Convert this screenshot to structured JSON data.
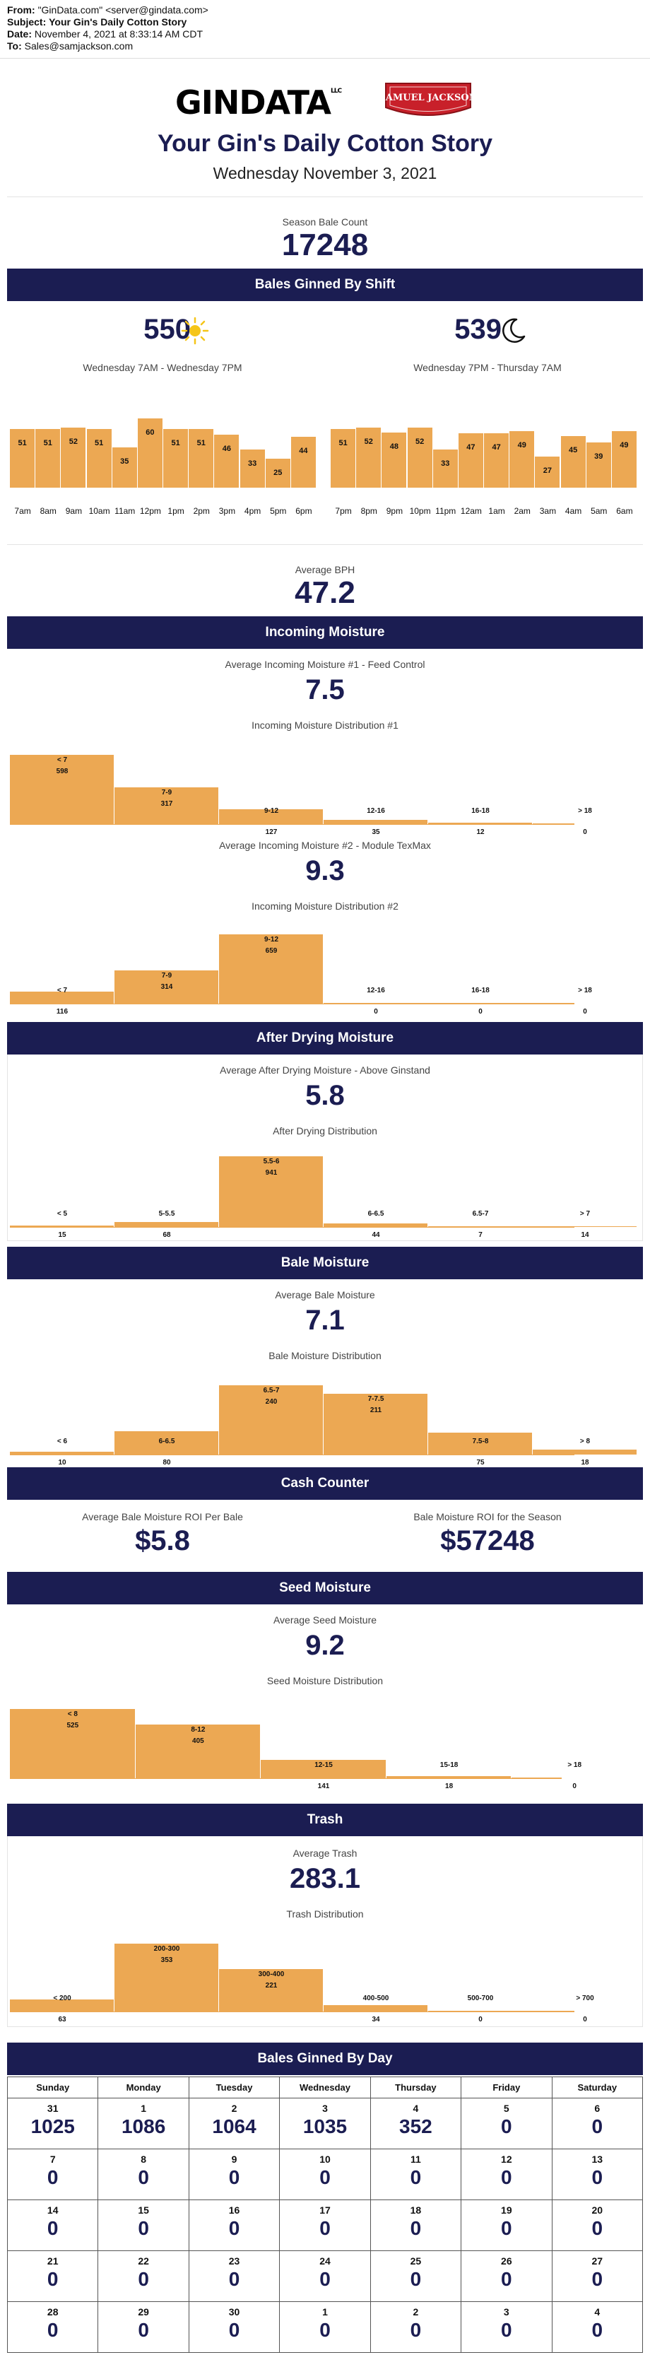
{
  "email": {
    "from_label": "From:",
    "from_value": "\"GinData.com\" <server@gindata.com>",
    "subject_label": "Subject:",
    "subject_value": "Your Gin's Daily Cotton Story",
    "date_label": "Date:",
    "date_value": "November 4, 2021 at 8:33:14 AM CDT",
    "to_label": "To:",
    "to_value": "Sales@samjackson.com"
  },
  "logos": {
    "gindata": "GINDATA",
    "gindata_mark": "LLC",
    "samjackson": "SAMUEL JACKSON"
  },
  "title": "Your Gin's Daily Cotton Story",
  "date": "Wednesday November 3, 2021",
  "season": {
    "label": "Season Bale Count",
    "value": "17248"
  },
  "shift": {
    "header": "Bales Ginned By Shift",
    "day_total": "550",
    "day_range": "Wednesday 7AM - Wednesday 7PM",
    "day_icon": "sun-icon",
    "night_total": "539",
    "night_range": "Wednesday 7PM - Thursday 7AM",
    "night_icon": "moon-icon",
    "day_hours": [
      "7am",
      "8am",
      "9am",
      "10am",
      "11am",
      "12pm",
      "1pm",
      "2pm",
      "3pm",
      "4pm",
      "5pm",
      "6pm"
    ],
    "day_values": [
      51,
      51,
      52,
      51,
      35,
      60,
      51,
      51,
      46,
      33,
      25,
      44
    ],
    "night_hours": [
      "7pm",
      "8pm",
      "9pm",
      "10pm",
      "11pm",
      "12am",
      "1am",
      "2am",
      "3am",
      "4am",
      "5am",
      "6am"
    ],
    "night_values": [
      51,
      52,
      48,
      52,
      33,
      47,
      47,
      49,
      27,
      45,
      39,
      49
    ]
  },
  "bph": {
    "label": "Average BPH",
    "value": "47.2"
  },
  "incoming": {
    "header": "Incoming Moisture",
    "avg1_label": "Average Incoming Moisture #1 - Feed Control",
    "avg1_value": "7.5",
    "dist1_label": "Incoming Moisture Distribution #1",
    "dist1_cats": [
      "< 7",
      "7-9",
      "9-12",
      "12-16",
      "16-18",
      "> 18"
    ],
    "dist1_values": [
      598,
      317,
      127,
      35,
      12,
      0
    ],
    "avg2_label": "Average Incoming Moisture #2 - Module TexMax",
    "avg2_value": "9.3",
    "dist2_label": "Incoming Moisture Distribution #2",
    "dist2_cats": [
      "< 7",
      "7-9",
      "9-12",
      "12-16",
      "16-18",
      "> 18"
    ],
    "dist2_values": [
      116,
      314,
      659,
      0,
      0,
      0
    ]
  },
  "drying": {
    "header": "After Drying Moisture",
    "avg_label": "Average After Drying Moisture - Above Ginstand",
    "avg_value": "5.8",
    "dist_label": "After Drying Distribution",
    "dist_cats": [
      "< 5",
      "5-5.5",
      "5.5-6",
      "6-6.5",
      "6.5-7",
      "> 7"
    ],
    "dist_values": [
      15,
      68,
      941,
      44,
      7,
      14
    ]
  },
  "bale": {
    "header": "Bale Moisture",
    "avg_label": "Average Bale Moisture",
    "avg_value": "7.1",
    "dist_label": "Bale Moisture Distribution",
    "dist_cats": [
      "< 6",
      "6-6.5",
      "6.5-7",
      "7-7.5",
      "7.5-8",
      "> 8"
    ],
    "dist_values": [
      10,
      80,
      240,
      211,
      75,
      18
    ]
  },
  "cash": {
    "header": "Cash Counter",
    "per_bale_label": "Average Bale Moisture ROI Per Bale",
    "per_bale_value": "$5.8",
    "season_label": "Bale Moisture ROI for the Season",
    "season_value": "$57248"
  },
  "seed": {
    "header": "Seed Moisture",
    "avg_label": "Average Seed Moisture",
    "avg_value": "9.2",
    "dist_label": "Seed Moisture Distribution",
    "dist_cats": [
      "< 8",
      "8-12",
      "12-15",
      "15-18",
      "> 18"
    ],
    "dist_values": [
      525,
      405,
      141,
      18,
      0
    ]
  },
  "trash": {
    "header": "Trash",
    "avg_label": "Average Trash",
    "avg_value": "283.1",
    "dist_label": "Trash Distribution",
    "dist_cats": [
      "< 200",
      "200-300",
      "300-400",
      "400-500",
      "500-700",
      "> 700"
    ],
    "dist_values": [
      63,
      353,
      221,
      34,
      0,
      0
    ]
  },
  "calendar": {
    "header": "Bales Ginned By Day",
    "weekdays": [
      "Sunday",
      "Monday",
      "Tuesday",
      "Wednesday",
      "Thursday",
      "Friday",
      "Saturday"
    ],
    "weeks": [
      [
        {
          "d": "31",
          "v": "1025"
        },
        {
          "d": "1",
          "v": "1086"
        },
        {
          "d": "2",
          "v": "1064"
        },
        {
          "d": "3",
          "v": "1035"
        },
        {
          "d": "4",
          "v": "352"
        },
        {
          "d": "5",
          "v": "0"
        },
        {
          "d": "6",
          "v": "0"
        }
      ],
      [
        {
          "d": "7",
          "v": "0"
        },
        {
          "d": "8",
          "v": "0"
        },
        {
          "d": "9",
          "v": "0"
        },
        {
          "d": "10",
          "v": "0"
        },
        {
          "d": "11",
          "v": "0"
        },
        {
          "d": "12",
          "v": "0"
        },
        {
          "d": "13",
          "v": "0"
        }
      ],
      [
        {
          "d": "14",
          "v": "0"
        },
        {
          "d": "15",
          "v": "0"
        },
        {
          "d": "16",
          "v": "0"
        },
        {
          "d": "17",
          "v": "0"
        },
        {
          "d": "18",
          "v": "0"
        },
        {
          "d": "19",
          "v": "0"
        },
        {
          "d": "20",
          "v": "0"
        }
      ],
      [
        {
          "d": "21",
          "v": "0"
        },
        {
          "d": "22",
          "v": "0"
        },
        {
          "d": "23",
          "v": "0"
        },
        {
          "d": "24",
          "v": "0"
        },
        {
          "d": "25",
          "v": "0"
        },
        {
          "d": "26",
          "v": "0"
        },
        {
          "d": "27",
          "v": "0"
        }
      ],
      [
        {
          "d": "28",
          "v": "0"
        },
        {
          "d": "29",
          "v": "0"
        },
        {
          "d": "30",
          "v": "0"
        },
        {
          "d": "1",
          "v": "0"
        },
        {
          "d": "2",
          "v": "0"
        },
        {
          "d": "3",
          "v": "0"
        },
        {
          "d": "4",
          "v": "0"
        }
      ]
    ]
  },
  "colors": {
    "navy": "#1b1d52",
    "bar": "#eca853",
    "sun": "#f5c518",
    "badge_red": "#c8202a"
  },
  "chart_data": [
    {
      "type": "bar",
      "categories": [
        "7am",
        "8am",
        "9am",
        "10am",
        "11am",
        "12pm",
        "1pm",
        "2pm",
        "3pm",
        "4pm",
        "5pm",
        "6pm"
      ],
      "values": [
        51,
        51,
        52,
        51,
        35,
        60,
        51,
        51,
        46,
        33,
        25,
        44
      ]
    },
    {
      "type": "bar",
      "categories": [
        "7pm",
        "8pm",
        "9pm",
        "10pm",
        "11pm",
        "12am",
        "1am",
        "2am",
        "3am",
        "4am",
        "5am",
        "6am"
      ],
      "values": [
        51,
        52,
        48,
        52,
        33,
        47,
        47,
        49,
        27,
        45,
        39,
        49
      ]
    },
    {
      "type": "bar",
      "title": "Incoming Moisture Distribution #1",
      "categories": [
        "< 7",
        "7-9",
        "9-12",
        "12-16",
        "16-18",
        "> 18"
      ],
      "values": [
        598,
        317,
        127,
        35,
        12,
        0
      ]
    },
    {
      "type": "bar",
      "title": "Incoming Moisture Distribution #2",
      "categories": [
        "< 7",
        "7-9",
        "9-12",
        "12-16",
        "16-18",
        "> 18"
      ],
      "values": [
        116,
        314,
        659,
        0,
        0,
        0
      ]
    },
    {
      "type": "bar",
      "title": "After Drying Distribution",
      "categories": [
        "< 5",
        "5-5.5",
        "5.5-6",
        "6-6.5",
        "6.5-7",
        "> 7"
      ],
      "values": [
        15,
        68,
        941,
        44,
        7,
        14
      ]
    },
    {
      "type": "bar",
      "title": "Bale Moisture Distribution",
      "categories": [
        "< 6",
        "6-6.5",
        "6.5-7",
        "7-7.5",
        "7.5-8",
        "> 8"
      ],
      "values": [
        10,
        80,
        240,
        211,
        75,
        18
      ]
    },
    {
      "type": "bar",
      "title": "Seed Moisture Distribution",
      "categories": [
        "< 8",
        "8-12",
        "12-15",
        "15-18",
        "> 18"
      ],
      "values": [
        525,
        405,
        141,
        18,
        0
      ]
    },
    {
      "type": "bar",
      "title": "Trash Distribution",
      "categories": [
        "< 200",
        "200-300",
        "300-400",
        "400-500",
        "500-700",
        "> 700"
      ],
      "values": [
        63,
        353,
        221,
        34,
        0,
        0
      ]
    }
  ]
}
